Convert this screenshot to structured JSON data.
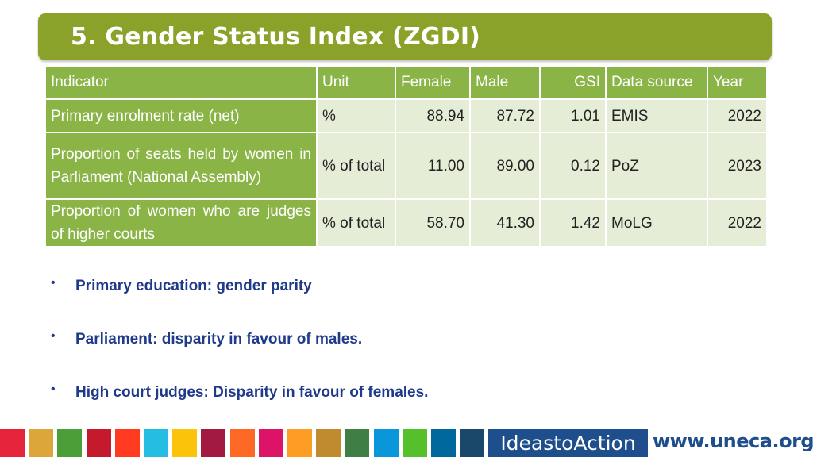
{
  "title": "5. Gender Status Index (ZGDI)",
  "table": {
    "headers": {
      "indicator": "Indicator",
      "unit": "Unit",
      "female": "Female",
      "male": "Male",
      "gsi": "GSI",
      "source": "Data source",
      "year": "Year"
    },
    "rows": [
      {
        "indicator": "Primary enrolment rate (net)",
        "unit": "%",
        "female": "88.94",
        "male": "87.72",
        "gsi": "1.01",
        "source": "EMIS",
        "year": "2022"
      },
      {
        "indicator": "Proportion of seats held by women in Parliament (National Assembly)",
        "unit": "% of total",
        "female": "11.00",
        "male": "89.00",
        "gsi": "0.12",
        "source": "PoZ",
        "year": "2023"
      },
      {
        "indicator": "Proportion of women who are judges of higher courts",
        "unit": "% of total",
        "female": "58.70",
        "male": "41.30",
        "gsi": "1.42",
        "source": "MoLG",
        "year": "2022"
      }
    ]
  },
  "bullets": [
    "Primary education: gender parity",
    "Parliament: disparity in favour of males.",
    "High court judges: Disparity in favour of females."
  ],
  "bullet_glyph": "•",
  "footer": {
    "logo_text": "IdeastoAction",
    "url": "www.uneca.org",
    "strip_colors": [
      "#e5243b",
      "#dda63a",
      "#4c9f38",
      "#c5192d",
      "#ff3a21",
      "#26bde2",
      "#fcc30b",
      "#a21942",
      "#fd6925",
      "#dd1367",
      "#fd9d24",
      "#bf8b2e",
      "#3f7e44",
      "#0a97d9",
      "#56c02b",
      "#00689d",
      "#19486a"
    ]
  },
  "colors": {
    "title_bar": "#8aa22a",
    "table_header": "#8ab446",
    "table_cell": "#e6edd7",
    "bullet_text": "#1f3a8a",
    "logo_bg": "#1e4f8c"
  }
}
